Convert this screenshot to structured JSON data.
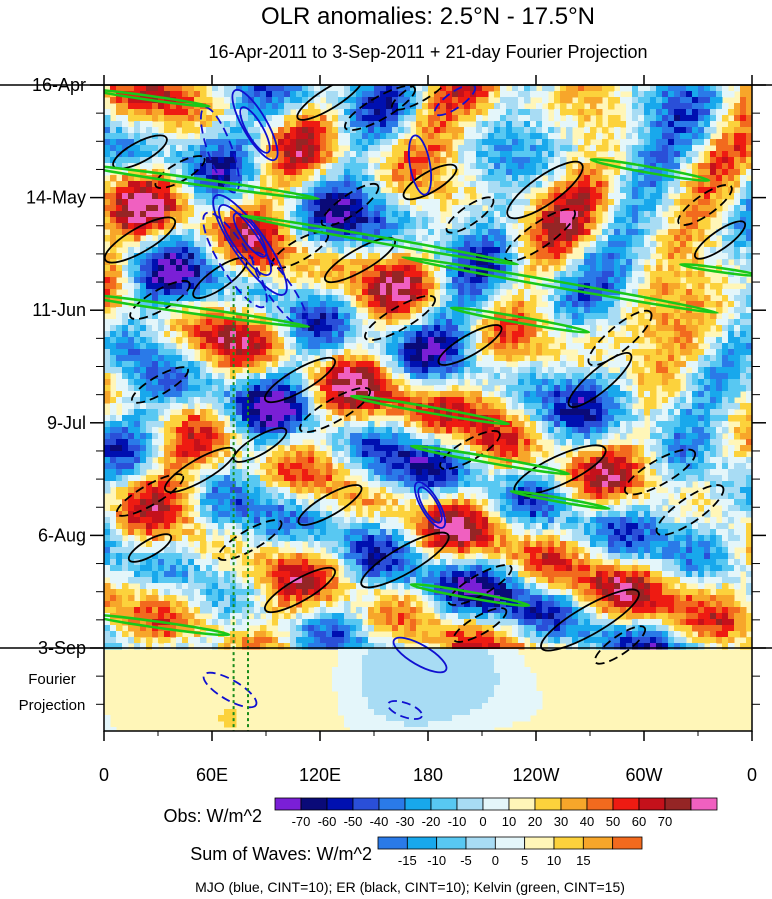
{
  "chart_data": {
    "type": "heatmap",
    "title": "OLR anomalies: 2.5°N - 17.5°N",
    "subtitle": "16-Apr-2011 to 3-Sep-2011 + 21-day Fourier Projection",
    "xaxis": {
      "labels": [
        "0",
        "60E",
        "120E",
        "180",
        "120W",
        "60W",
        "0"
      ],
      "values": [
        0,
        60,
        120,
        180,
        240,
        300,
        360
      ],
      "range": [
        0,
        360
      ]
    },
    "yaxis": {
      "labels": [
        "16-Apr",
        "14-May",
        "11-Jun",
        "9-Jul",
        "6-Aug",
        "3-Sep"
      ],
      "day_index": [
        0,
        28,
        56,
        84,
        112,
        140
      ],
      "range_days": [
        0,
        161
      ],
      "projection_label": [
        "Fourier",
        "Projection"
      ]
    },
    "obs_colorbar": {
      "label": "Obs: W/m^2",
      "ticks": [
        "-70",
        "-60",
        "-50",
        "-40",
        "-30",
        "-20",
        "-10",
        "0",
        "10",
        "20",
        "30",
        "40",
        "50",
        "60",
        "70"
      ],
      "colors": [
        "#7a1fd6",
        "#0a0a78",
        "#0010b0",
        "#2a4fd8",
        "#2a7ae8",
        "#18a8ec",
        "#58c8f2",
        "#a8dcf4",
        "#e4f6fa",
        "#fff6b8",
        "#fcd23c",
        "#f7a62a",
        "#f26a1e",
        "#ee1b12",
        "#c4111b",
        "#952525",
        "#f060c0"
      ]
    },
    "waves_colorbar": {
      "label": "Sum of Waves: W/m^2",
      "ticks": [
        "-15",
        "-10",
        "-5",
        "0",
        "5",
        "10",
        "15"
      ],
      "colors": [
        "#2a7ae8",
        "#18a8ec",
        "#58c8f2",
        "#a8dcf4",
        "#e4f6fa",
        "#fff6b8",
        "#fcd23c",
        "#f7a62a",
        "#f26a1e"
      ]
    },
    "legend_note": "MJO (blue, CINT=10); ER (black, CINT=10); Kelvin (green, CINT=15)",
    "contour_colors": {
      "mjo": "#1010d0",
      "er": "#000000",
      "kelvin": "#19c819"
    },
    "reference_longitudes": [
      72,
      80
    ]
  }
}
